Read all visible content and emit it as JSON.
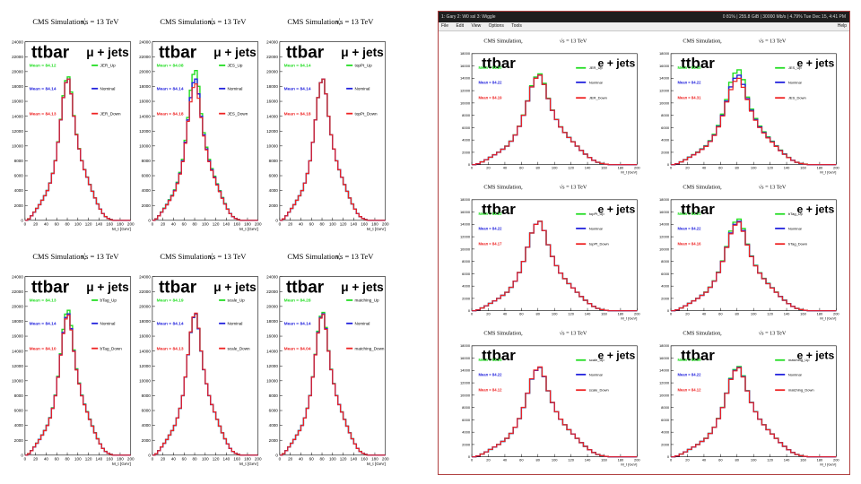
{
  "left_panel": {
    "panels": [
      {
        "header": "CMS Simulation,",
        "energy": "13 TeV",
        "sample": "ttbar",
        "channel": "μ + jets",
        "mean_lines": [
          "Mean = 84.12",
          "Mean = 84.14",
          "Mean = 84.13"
        ],
        "legend": [
          "JER_Up",
          "Nominal",
          "JER_Down"
        ]
      },
      {
        "header": "CMS Simulation,",
        "energy": "13 TeV",
        "sample": "ttbar",
        "channel": "μ + jets",
        "mean_lines": [
          "Mean = 84.08",
          "Mean = 84.14",
          "Mean = 84.18"
        ],
        "legend": [
          "JES_Up",
          "Nominal",
          "JES_Down"
        ]
      },
      {
        "header": "CMS Simulation,",
        "energy": "13 TeV",
        "sample": "ttbar",
        "channel": "μ + jets",
        "mean_lines": [
          "Mean = 84.14",
          "Mean = 84.14",
          "Mean = 84.18"
        ],
        "legend": [
          "topPt_Up",
          "Nominal",
          "topPt_Down"
        ]
      },
      {
        "header": "CMS Simulation,",
        "energy": "13 TeV",
        "sample": "ttbar",
        "channel": "μ + jets",
        "mean_lines": [
          "Mean = 84.13",
          "Mean = 84.14",
          "Mean = 84.10"
        ],
        "legend": [
          "bTag_Up",
          "Nominal",
          "bTag_Down"
        ]
      },
      {
        "header": "CMS Simulation,",
        "energy": "13 TeV",
        "sample": "ttbar",
        "channel": "μ + jets",
        "mean_lines": [
          "Mean = 84.19",
          "Mean = 84.14",
          "Mean = 84.13"
        ],
        "legend": [
          "scale_Up",
          "Nominal",
          "scale_Down"
        ]
      },
      {
        "header": "CMS Simulation,",
        "energy": "13 TeV",
        "sample": "ttbar",
        "channel": "μ + jets",
        "mean_lines": [
          "Mean = 84.28",
          "Mean = 84.14",
          "Mean = 84.04"
        ],
        "legend": [
          "matching_Up",
          "Nominal",
          "matching_Down"
        ]
      }
    ]
  },
  "right_window": {
    "topbar": {
      "left_text": "1: Gary   2: W0 ssl   3: Wiggle",
      "right_text": "0 81%  |  255.8 GiB  |  30000 Mb/s  |  4.79%  Tue Dec 15,  4:41 PM"
    },
    "menu": [
      "File",
      "Edit",
      "View",
      "Options",
      "Tools"
    ],
    "help": "Help",
    "panels": [
      {
        "header": "CMS Simulation,",
        "energy": "13 TeV",
        "sample": "ttbar",
        "channel": "e + jets",
        "mean_lines": [
          "Mean = 84.20",
          "Mean = 84.22",
          "Mean = 84.19"
        ],
        "legend": [
          "JER_Up",
          "Nominal",
          "JER_Down"
        ]
      },
      {
        "header": "CMS Simulation,",
        "energy": "13 TeV",
        "sample": "ttbar",
        "channel": "e + jets",
        "mean_lines": [
          "Mean = 84.15",
          "Mean = 84.22",
          "Mean = 84.31"
        ],
        "legend": [
          "JES_Up",
          "Nominal",
          "JES_Down"
        ]
      },
      {
        "header": "CMS Simulation,",
        "energy": "13 TeV",
        "sample": "ttbar",
        "channel": "e + jets",
        "mean_lines": [
          "Mean = 84.22",
          "Mean = 84.22",
          "Mean = 84.17"
        ],
        "legend": [
          "topPt_Up",
          "Nominal",
          "topPt_Down"
        ]
      },
      {
        "header": "CMS Simulation,",
        "energy": "13 TeV",
        "sample": "ttbar",
        "channel": "e + jets",
        "mean_lines": [
          "Mean = 84.21",
          "Mean = 84.22",
          "Mean = 84.16"
        ],
        "legend": [
          "bTag_Up",
          "Nominal",
          "bTag_Down"
        ]
      },
      {
        "header": "CMS Simulation,",
        "energy": "13 TeV",
        "sample": "ttbar",
        "channel": "e + jets",
        "mean_lines": [
          "Mean = 84.24",
          "Mean = 84.22",
          "Mean = 84.12"
        ],
        "legend": [
          "scale_Up",
          "Nominal",
          "scale_Down"
        ]
      },
      {
        "header": "CMS Simulation,",
        "energy": "13 TeV",
        "sample": "ttbar",
        "channel": "e + jets",
        "mean_lines": [
          "Mean = 84.35",
          "Mean = 84.22",
          "Mean = 84.12"
        ],
        "legend": [
          "matching_Up",
          "Nominal",
          "matching_Down"
        ]
      }
    ]
  },
  "colors": {
    "up": "#22dd22",
    "nominal": "#2222dd",
    "down": "#ee2222",
    "window_border": "#b04040"
  },
  "chart_data": [
    {
      "type": "line",
      "title": "CMS Simulation, √s = 13 TeV — ttbar μ + jets",
      "xlabel": "M_t [GeV]",
      "ylabel": "",
      "xlim": [
        0,
        200
      ],
      "ylim": [
        0,
        24000
      ],
      "x_ticks": [
        0,
        20,
        40,
        60,
        80,
        100,
        120,
        140,
        160,
        180,
        200
      ],
      "y_ticks": [
        0,
        2000,
        4000,
        6000,
        8000,
        10000,
        12000,
        14000,
        16000,
        18000,
        20000,
        22000,
        24000
      ],
      "x": [
        0,
        5,
        10,
        15,
        20,
        25,
        30,
        35,
        40,
        45,
        50,
        55,
        60,
        65,
        70,
        75,
        80,
        85,
        90,
        95,
        100,
        105,
        110,
        115,
        120,
        125,
        130,
        135,
        140,
        145,
        150,
        155,
        160,
        165,
        170,
        175,
        180,
        185,
        190,
        195
      ],
      "series": [
        {
          "name": "Nominal",
          "values": [
            0,
            200,
            600,
            1100,
            1600,
            2100,
            2700,
            3300,
            4000,
            5000,
            6300,
            8000,
            10500,
            13500,
            16500,
            18500,
            19000,
            17000,
            14000,
            11500,
            9600,
            8000,
            6800,
            5800,
            4800,
            3900,
            3000,
            2200,
            1500,
            900,
            500,
            250,
            100,
            0,
            0,
            0,
            0,
            0,
            0,
            0
          ]
        }
      ],
      "panels": [
        {
          "label": "JER",
          "variations": [
            "JER_Up",
            "Nominal",
            "JER_Down"
          ]
        },
        {
          "label": "JES",
          "variations": [
            "JES_Up",
            "Nominal",
            "JES_Down"
          ]
        },
        {
          "label": "topPt",
          "variations": [
            "topPt_Up",
            "Nominal",
            "topPt_Down"
          ]
        },
        {
          "label": "bTag",
          "variations": [
            "bTag_Up",
            "Nominal",
            "bTag_Down"
          ]
        },
        {
          "label": "scale",
          "variations": [
            "scale_Up",
            "Nominal",
            "scale_Down"
          ]
        },
        {
          "label": "matching",
          "variations": [
            "matching_Up",
            "Nominal",
            "matching_Down"
          ]
        }
      ],
      "legend": "right"
    },
    {
      "type": "line",
      "title": "CMS Simulation, √s = 13 TeV — ttbar e + jets",
      "xlabel": "M_t [GeV]",
      "ylabel": "",
      "xlim": [
        0,
        200
      ],
      "ylim": [
        0,
        18000
      ],
      "x_ticks": [
        0,
        20,
        40,
        60,
        80,
        100,
        120,
        140,
        160,
        180,
        200
      ],
      "y_ticks": [
        0,
        2000,
        4000,
        6000,
        8000,
        10000,
        12000,
        14000,
        16000,
        18000
      ],
      "x": [
        0,
        5,
        10,
        15,
        20,
        25,
        30,
        35,
        40,
        45,
        50,
        55,
        60,
        65,
        70,
        75,
        80,
        85,
        90,
        95,
        100,
        105,
        110,
        115,
        120,
        125,
        130,
        135,
        140,
        145,
        150,
        155,
        160,
        165,
        170,
        175,
        180,
        185,
        190,
        195
      ],
      "series": [
        {
          "name": "Nominal",
          "values": [
            0,
            150,
            450,
            800,
            1200,
            1600,
            2000,
            2500,
            3000,
            3800,
            4800,
            6200,
            8000,
            10300,
            12600,
            14000,
            14500,
            13000,
            10700,
            8800,
            7300,
            6100,
            5200,
            4400,
            3700,
            3000,
            2300,
            1700,
            1150,
            700,
            380,
            190,
            80,
            0,
            0,
            0,
            0,
            0,
            0,
            0
          ]
        }
      ],
      "panels": [
        {
          "label": "JER",
          "variations": [
            "JER_Up",
            "Nominal",
            "JER_Down"
          ]
        },
        {
          "label": "JES",
          "variations": [
            "JES_Up",
            "Nominal",
            "JES_Down"
          ]
        },
        {
          "label": "topPt",
          "variations": [
            "topPt_Up",
            "Nominal",
            "topPt_Down"
          ]
        },
        {
          "label": "bTag",
          "variations": [
            "bTag_Up",
            "Nominal",
            "bTag_Down"
          ]
        },
        {
          "label": "scale",
          "variations": [
            "scale_Up",
            "Nominal",
            "scale_Down"
          ]
        },
        {
          "label": "matching",
          "variations": [
            "matching_Up",
            "Nominal",
            "matching_Down"
          ]
        }
      ],
      "legend": "right"
    }
  ]
}
